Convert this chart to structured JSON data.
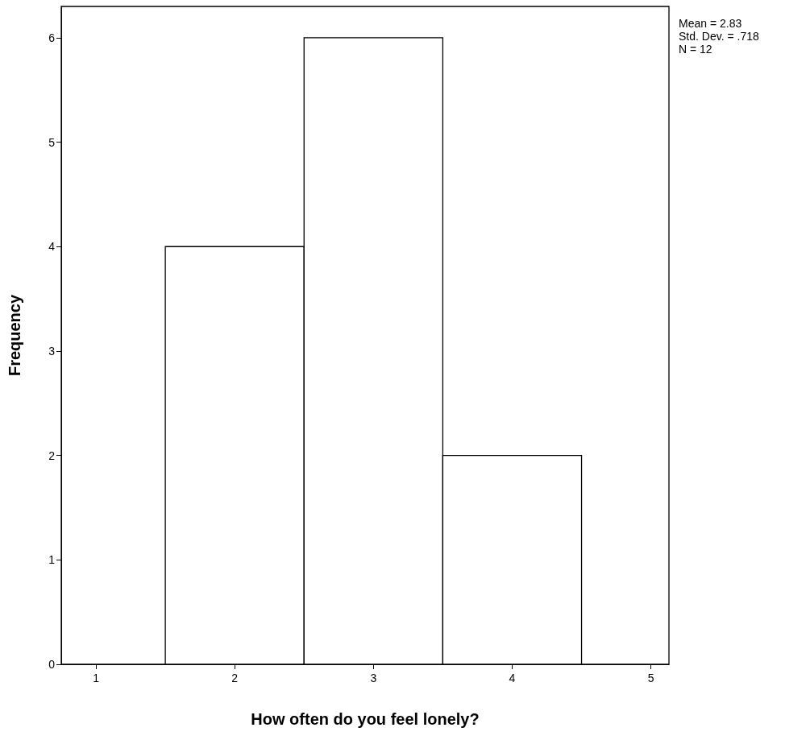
{
  "chart_data": {
    "type": "histogram",
    "xlabel": "How often do you feel lonely?",
    "ylabel": "Frequency",
    "bins": [
      1.5,
      2.5,
      3.5,
      4.5
    ],
    "values": [
      4,
      6,
      2
    ],
    "color": "#ffffff",
    "xlim": [
      0.75,
      5.13
    ],
    "xticks": [
      1,
      2,
      3,
      4,
      5
    ],
    "ylim": [
      0,
      6.3
    ],
    "yticks": [
      0,
      1,
      2,
      3,
      4,
      5,
      6
    ],
    "grid": false,
    "annotations": [
      "Mean = 2.83",
      "Std. Dev. = .718",
      "N = 12"
    ]
  }
}
